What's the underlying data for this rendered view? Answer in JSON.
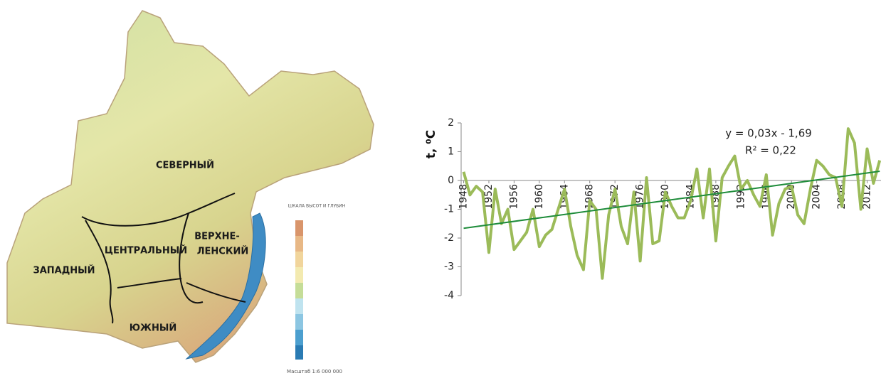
{
  "map": {
    "regions": {
      "north": "СЕВЕРНЫЙ",
      "central": "ЦЕНТРАЛЬНЫЙ",
      "upper_lena": [
        "ВЕРХНЕ-",
        "ЛЕНСКИЙ"
      ],
      "west": "ЗАПАДНЫЙ",
      "south": "ЮЖНЫЙ"
    },
    "legend_title": "ШКАЛА ВЫСОТ И ГЛУБИН",
    "scale": "Масштаб 1:6 000 000"
  },
  "chart_data": {
    "type": "line",
    "y_label": "t, ⁰C",
    "x": [
      1948,
      1949,
      1950,
      1951,
      1952,
      1953,
      1954,
      1955,
      1956,
      1957,
      1958,
      1959,
      1960,
      1961,
      1962,
      1963,
      1964,
      1965,
      1966,
      1967,
      1968,
      1969,
      1970,
      1971,
      1972,
      1973,
      1974,
      1975,
      1976,
      1977,
      1978,
      1979,
      1980,
      1981,
      1982,
      1983,
      1984,
      1985,
      1986,
      1987,
      1988,
      1989,
      1990,
      1991,
      1992,
      1993,
      1994,
      1995,
      1996,
      1997,
      1998,
      1999,
      2000,
      2001,
      2002,
      2003,
      2004,
      2005,
      2006,
      2007,
      2008,
      2009,
      2010,
      2011,
      2012,
      2013,
      2014
    ],
    "series": [
      {
        "color": "#9bbb59",
        "values": [
          0.3,
          -0.5,
          -0.2,
          -0.4,
          -2.5,
          -0.3,
          -1.5,
          -1.0,
          -2.4,
          -2.1,
          -1.8,
          -1.0,
          -2.3,
          -1.9,
          -1.7,
          -1.0,
          -0.3,
          -1.6,
          -2.6,
          -3.1,
          -0.7,
          -1.0,
          -3.4,
          -1.2,
          -0.3,
          -1.6,
          -2.2,
          -0.4,
          -2.8,
          0.1,
          -2.2,
          -2.1,
          -0.4,
          -0.9,
          -1.3,
          -1.3,
          -0.7,
          0.4,
          -1.3,
          0.4,
          -2.1,
          0.1,
          0.5,
          0.85,
          -0.3,
          0.0,
          -0.5,
          -0.9,
          0.2,
          -1.9,
          -0.8,
          -0.3,
          -0.2,
          -1.2,
          -1.5,
          -0.3,
          0.7,
          0.5,
          0.2,
          0.1,
          -0.9,
          1.8,
          1.3,
          -1.0,
          1.1,
          -0.1,
          0.7
        ]
      }
    ],
    "trend": {
      "color": "#1e8c3a",
      "slope": 0.03,
      "intercept": -1.69,
      "equation": "y = 0,03x - 1,69",
      "r2": "R² = 0,22"
    },
    "xlim": [
      1947.6,
      2014.2
    ],
    "ylim": [
      -4,
      2
    ],
    "xticks": [
      1948,
      1952,
      1956,
      1960,
      1964,
      1968,
      1972,
      1976,
      1980,
      1984,
      1988,
      1992,
      1996,
      2000,
      2004,
      2008,
      2012
    ],
    "yticks": [
      -4,
      -3,
      -2,
      -1,
      0,
      1,
      2
    ]
  }
}
